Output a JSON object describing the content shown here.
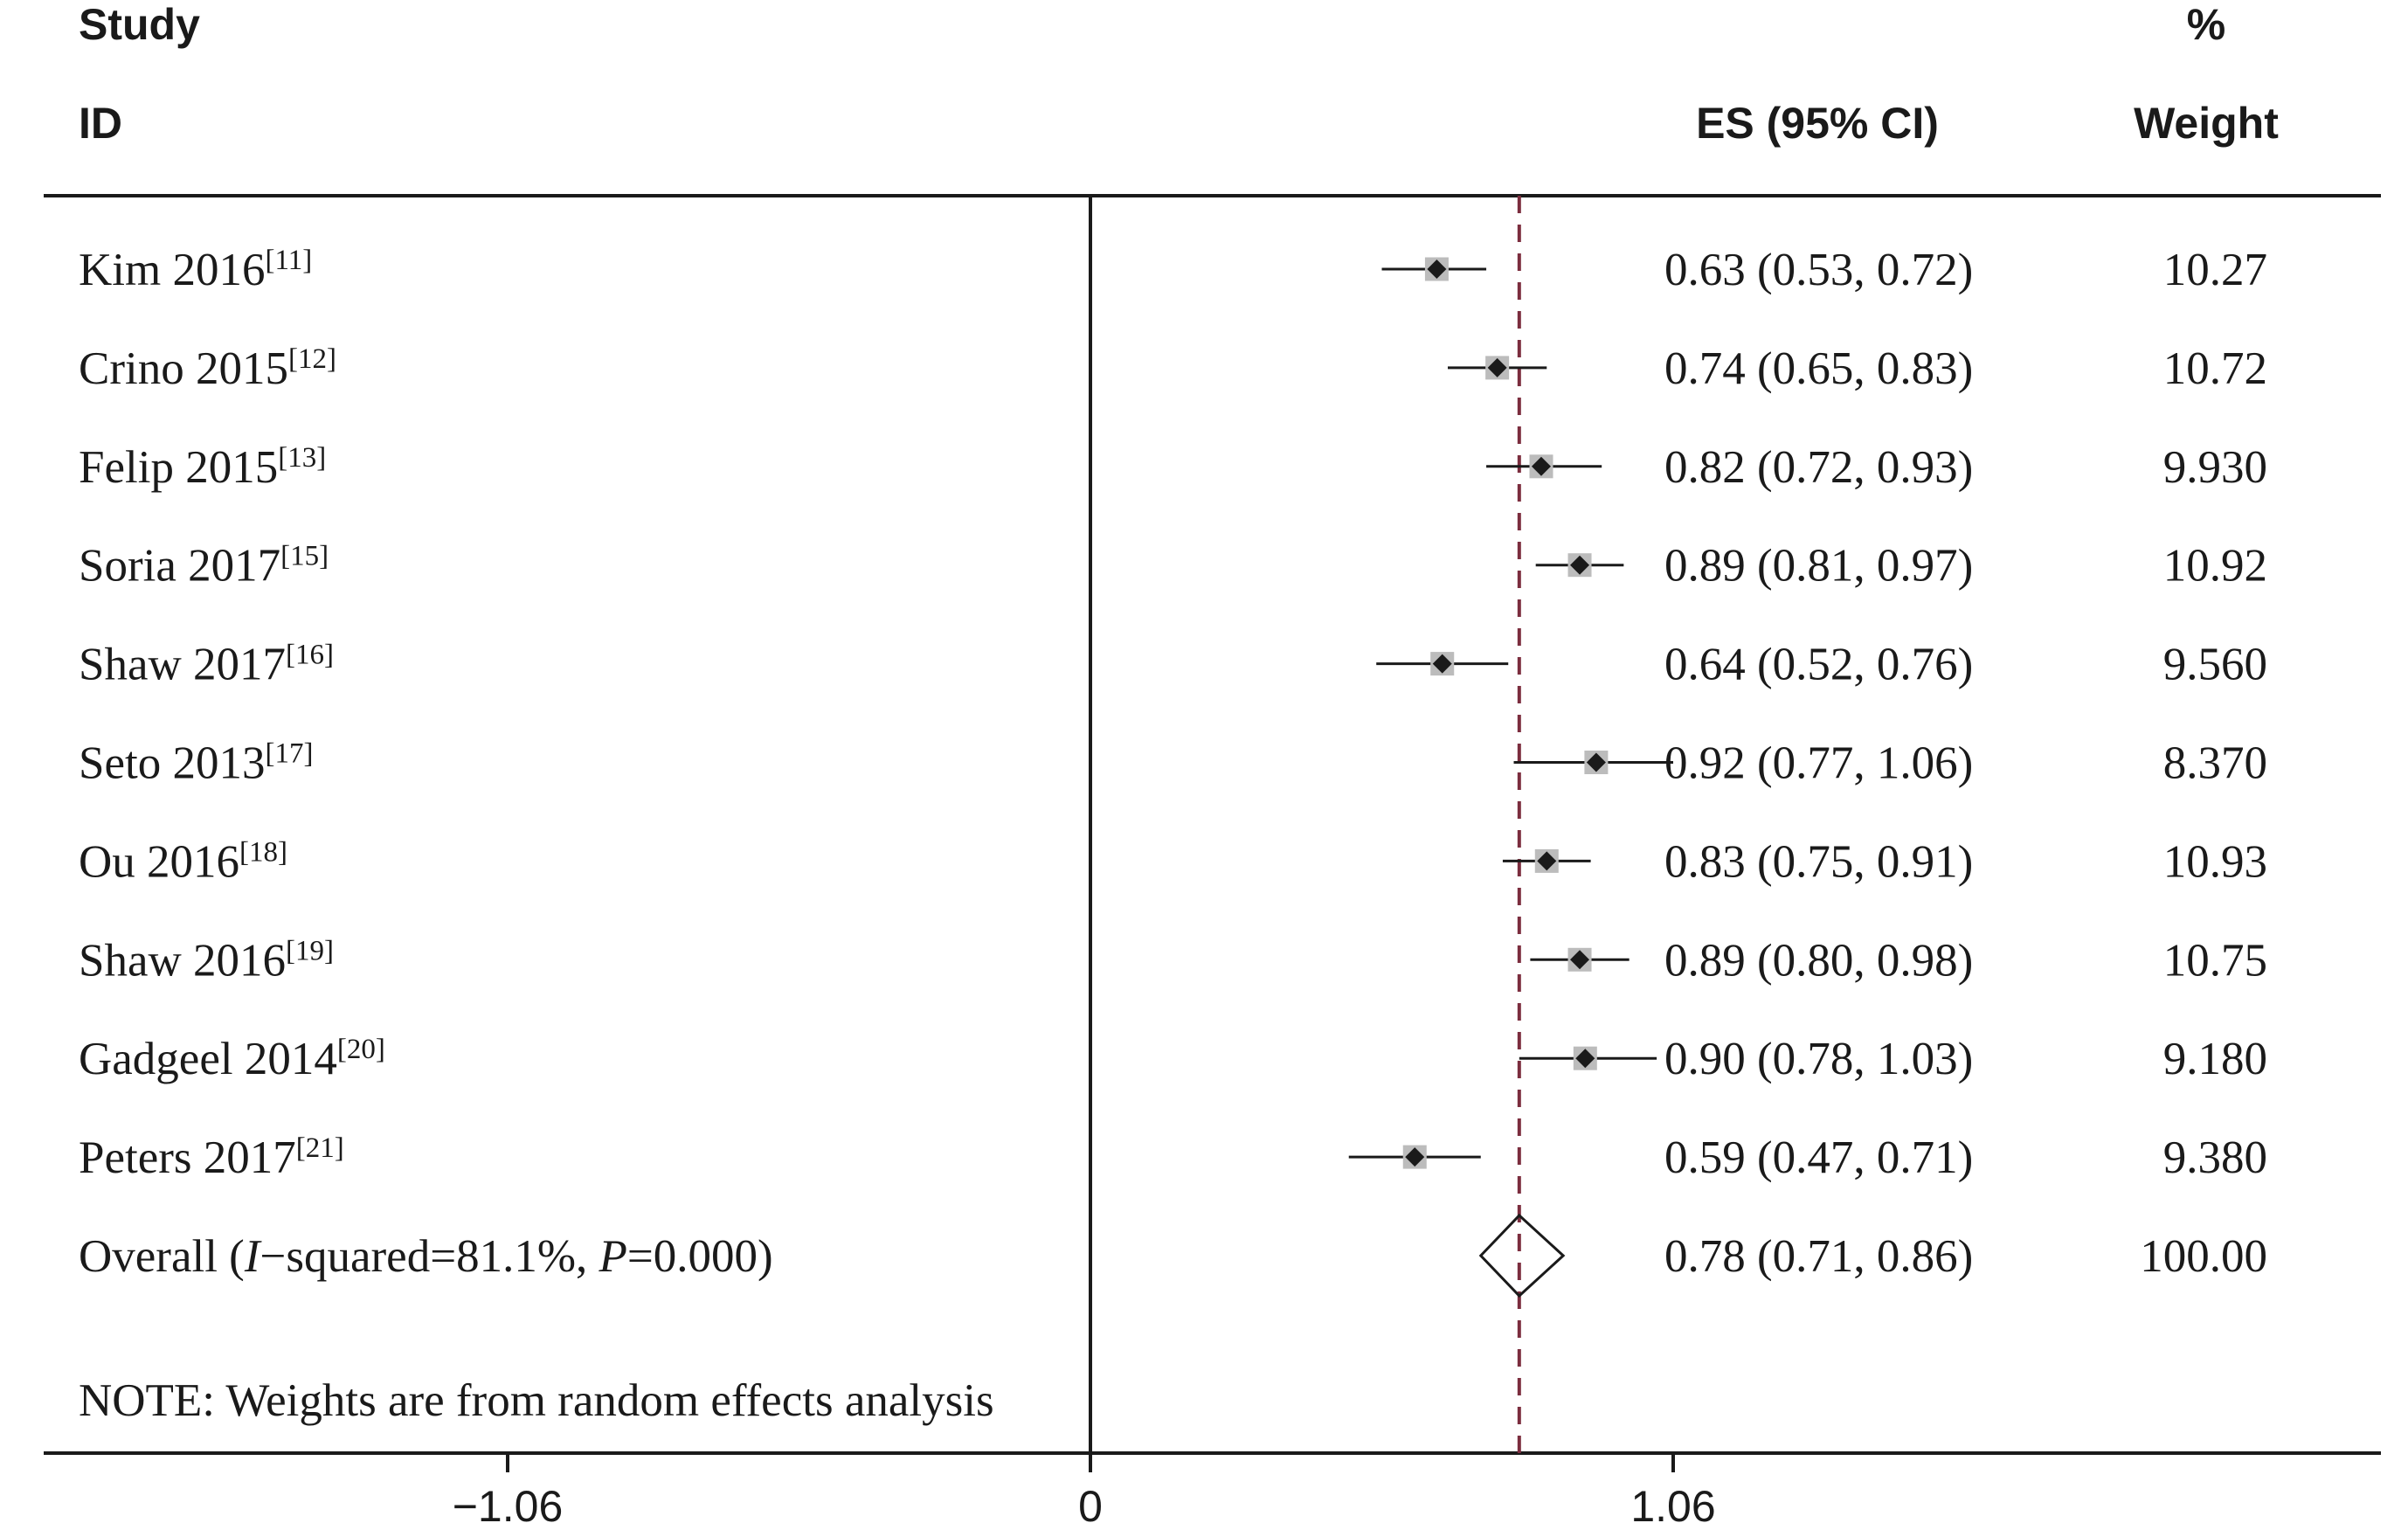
{
  "chart_data": {
    "type": "forest",
    "header": {
      "col1_line1": "Study",
      "col1_line2": "ID",
      "col2": "ES (95% CI)",
      "col3_line1": "%",
      "col3_line2": "Weight"
    },
    "studies": [
      {
        "label": "Kim 2016",
        "ref": "[11]",
        "es": 0.63,
        "lo": 0.53,
        "hi": 0.72,
        "ci_text": "0.63 (0.53, 0.72)",
        "weight": 10.27,
        "weight_text": "10.27"
      },
      {
        "label": "Crino 2015",
        "ref": "[12]",
        "es": 0.74,
        "lo": 0.65,
        "hi": 0.83,
        "ci_text": "0.74 (0.65, 0.83)",
        "weight": 10.72,
        "weight_text": "10.72"
      },
      {
        "label": "Felip 2015",
        "ref": "[13]",
        "es": 0.82,
        "lo": 0.72,
        "hi": 0.93,
        "ci_text": "0.82 (0.72, 0.93)",
        "weight": 9.93,
        "weight_text": "9.930"
      },
      {
        "label": "Soria 2017",
        "ref": "[15]",
        "es": 0.89,
        "lo": 0.81,
        "hi": 0.97,
        "ci_text": "0.89 (0.81, 0.97)",
        "weight": 10.92,
        "weight_text": "10.92"
      },
      {
        "label": "Shaw 2017",
        "ref": "[16]",
        "es": 0.64,
        "lo": 0.52,
        "hi": 0.76,
        "ci_text": "0.64 (0.52, 0.76)",
        "weight": 9.56,
        "weight_text": "9.560"
      },
      {
        "label": "Seto 2013",
        "ref": "[17]",
        "es": 0.92,
        "lo": 0.77,
        "hi": 1.06,
        "ci_text": "0.92 (0.77, 1.06)",
        "weight": 8.37,
        "weight_text": "8.370"
      },
      {
        "label": "Ou 2016",
        "ref": "[18]",
        "es": 0.83,
        "lo": 0.75,
        "hi": 0.91,
        "ci_text": "0.83 (0.75, 0.91)",
        "weight": 10.93,
        "weight_text": "10.93"
      },
      {
        "label": "Shaw 2016",
        "ref": "[19]",
        "es": 0.89,
        "lo": 0.8,
        "hi": 0.98,
        "ci_text": "0.89 (0.80, 0.98)",
        "weight": 10.75,
        "weight_text": "10.75"
      },
      {
        "label": "Gadgeel 2014",
        "ref": "[20]",
        "es": 0.9,
        "lo": 0.78,
        "hi": 1.03,
        "ci_text": "0.90 (0.78, 1.03)",
        "weight": 9.18,
        "weight_text": "9.180"
      },
      {
        "label": "Peters 2017",
        "ref": "[21]",
        "es": 0.59,
        "lo": 0.47,
        "hi": 0.71,
        "ci_text": "0.59 (0.47, 0.71)",
        "weight": 9.38,
        "weight_text": "9.380"
      }
    ],
    "overall": {
      "label_prefix": "Overall  (",
      "i2_symbol": "I",
      "i2_text": "−squared=81.1%, ",
      "p_symbol": "P",
      "p_text": "=0.000)",
      "es": 0.78,
      "lo": 0.71,
      "hi": 0.86,
      "ci_text": "0.78 (0.71, 0.86)",
      "weight_text": "100.00"
    },
    "note": "NOTE: Weights are from random effects analysis",
    "x_ticks": [
      {
        "value": -1.06,
        "label": "−1.06"
      },
      {
        "value": 0,
        "label": "0"
      },
      {
        "value": 1.06,
        "label": "1.06"
      }
    ],
    "xlim": [
      -1.9,
      2.25
    ],
    "null_line": 0,
    "colors": {
      "line": "#1a1a1a",
      "box": "#bcbcbc",
      "marker": "#1a1a1a",
      "overall_line": "#7b2d3e"
    }
  }
}
